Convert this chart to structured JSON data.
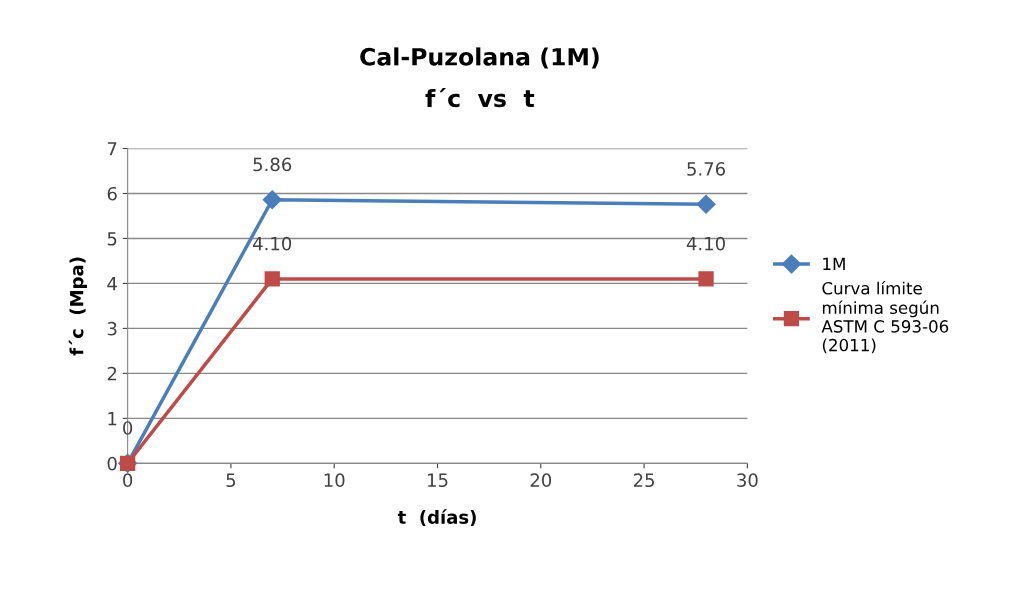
{
  "chart_data": {
    "type": "line",
    "title": "Cal-Puzolana (1M)",
    "subtitle": "f´c  vs  t",
    "xlabel": "t  (días)",
    "ylabel": "f´c  (Mpa)",
    "xlim": [
      0,
      30
    ],
    "xticks": [
      0,
      5,
      10,
      15,
      20,
      25,
      30
    ],
    "ylim": [
      0,
      7
    ],
    "yticks": [
      0,
      1,
      2,
      3,
      4,
      5,
      6,
      7
    ],
    "grid": "y",
    "legend": "right",
    "series": [
      {
        "name": "1M",
        "color": "#4a7ebb",
        "marker": "diamond",
        "x": [
          0,
          7,
          28
        ],
        "values": [
          0,
          5.86,
          5.76
        ],
        "value_labels": [
          "0",
          "5.86",
          "5.76"
        ]
      },
      {
        "name": "Curva límite\nmínima según\nASTM C 593-06\n(2011)",
        "color": "#be4b48",
        "marker": "square",
        "x": [
          0,
          7,
          28
        ],
        "values": [
          0,
          4.1,
          4.1
        ],
        "value_labels": [
          null,
          "4.10",
          "4.10"
        ]
      }
    ]
  }
}
